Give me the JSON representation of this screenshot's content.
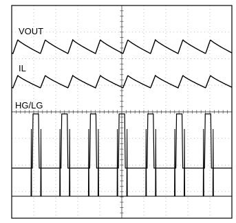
{
  "chart_data": {
    "type": "line",
    "title": "",
    "grid": true,
    "divisions": {
      "x": 10,
      "y": 8
    },
    "series": [
      {
        "name": "VOUT",
        "shape": "sawtooth-ramp-down",
        "cycles": 8,
        "color": "#000000"
      },
      {
        "name": "IL",
        "shape": "sawtooth-ramp-down",
        "cycles": 8,
        "color": "#000000"
      },
      {
        "name": "HG/LG",
        "shape": "pulse-pair",
        "cycles": 7,
        "color": "#000000"
      }
    ]
  }
}
